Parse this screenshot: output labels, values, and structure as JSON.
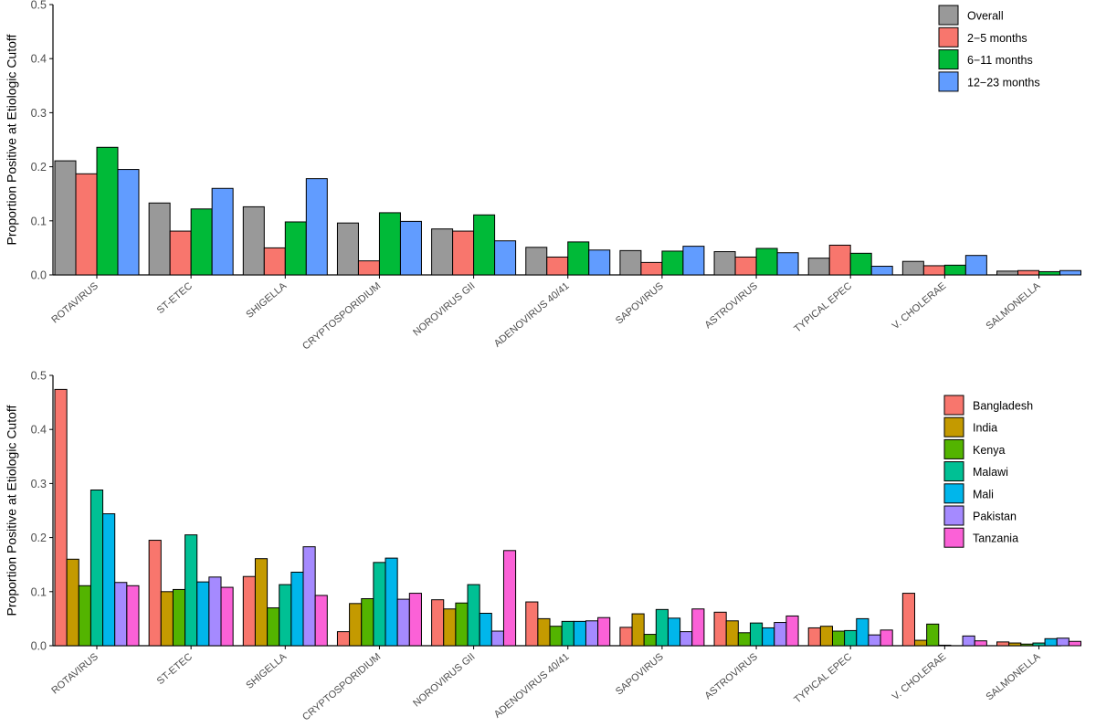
{
  "chart_data": [
    {
      "type": "bar",
      "title": "",
      "xlabel": "",
      "ylabel": "Proportion Positive at Etiologic Cutoff",
      "ylim": [
        0,
        0.5
      ],
      "yticks": [
        "0.0",
        "0.1",
        "0.2",
        "0.3",
        "0.4",
        "0.5"
      ],
      "grid": false,
      "legend_position": "top-right",
      "categories": [
        "ROTAVIRUS",
        "ST-ETEC",
        "SHIGELLA",
        "CRYPTOSPORIDIUM",
        "NOROVIRUS GII",
        "ADENOVIRUS 40/41",
        "SAPOVIRUS",
        "ASTROVIRUS",
        "TYPICAL EPEC",
        "V. CHOLERAE",
        "SALMONELLA"
      ],
      "series": [
        {
          "name": "Overall",
          "color": "#999999",
          "values": [
            0.211,
            0.133,
            0.126,
            0.096,
            0.085,
            0.051,
            0.045,
            0.043,
            0.031,
            0.025,
            0.007
          ]
        },
        {
          "name": "2−5 months",
          "color": "#F8766D",
          "values": [
            0.187,
            0.081,
            0.05,
            0.026,
            0.081,
            0.033,
            0.023,
            0.033,
            0.055,
            0.017,
            0.008
          ]
        },
        {
          "name": "6−11 months",
          "color": "#00BA38",
          "values": [
            0.236,
            0.122,
            0.098,
            0.115,
            0.111,
            0.061,
            0.044,
            0.049,
            0.04,
            0.018,
            0.006
          ]
        },
        {
          "name": "12−23 months",
          "color": "#619CFF",
          "values": [
            0.195,
            0.16,
            0.178,
            0.099,
            0.063,
            0.046,
            0.053,
            0.041,
            0.016,
            0.036,
            0.008
          ]
        }
      ]
    },
    {
      "type": "bar",
      "title": "",
      "xlabel": "",
      "ylabel": "Proportion Positive at Etiologic Cutoff",
      "ylim": [
        0,
        0.5
      ],
      "yticks": [
        "0.0",
        "0.1",
        "0.2",
        "0.3",
        "0.4",
        "0.5"
      ],
      "grid": false,
      "legend_position": "top-right",
      "categories": [
        "ROTAVIRUS",
        "ST-ETEC",
        "SHIGELLA",
        "CRYPTOSPORIDIUM",
        "NOROVIRUS GII",
        "ADENOVIRUS 40/41",
        "SAPOVIRUS",
        "ASTROVIRUS",
        "TYPICAL EPEC",
        "V. CHOLERAE",
        "SALMONELLA"
      ],
      "series": [
        {
          "name": "Bangladesh",
          "color": "#F8766D",
          "values": [
            0.474,
            0.195,
            0.128,
            0.026,
            0.085,
            0.081,
            0.034,
            0.062,
            0.033,
            0.097,
            0.007
          ]
        },
        {
          "name": "India",
          "color": "#C49A00",
          "values": [
            0.16,
            0.1,
            0.161,
            0.078,
            0.068,
            0.05,
            0.059,
            0.046,
            0.036,
            0.01,
            0.005
          ]
        },
        {
          "name": "Kenya",
          "color": "#53B400",
          "values": [
            0.111,
            0.104,
            0.07,
            0.087,
            0.079,
            0.036,
            0.021,
            0.024,
            0.027,
            0.04,
            0.003
          ]
        },
        {
          "name": "Malawi",
          "color": "#00C094",
          "values": [
            0.288,
            0.205,
            0.113,
            0.154,
            0.113,
            0.045,
            0.067,
            0.042,
            0.028,
            0.001,
            0.005
          ]
        },
        {
          "name": "Mali",
          "color": "#00B6EB",
          "values": [
            0.244,
            0.118,
            0.136,
            0.162,
            0.06,
            0.045,
            0.051,
            0.033,
            0.05,
            0.0,
            0.013
          ]
        },
        {
          "name": "Pakistan",
          "color": "#A58AFF",
          "values": [
            0.117,
            0.127,
            0.183,
            0.086,
            0.027,
            0.046,
            0.026,
            0.043,
            0.02,
            0.018,
            0.014
          ]
        },
        {
          "name": "Tanzania",
          "color": "#FB61D7",
          "values": [
            0.111,
            0.108,
            0.093,
            0.097,
            0.176,
            0.052,
            0.068,
            0.055,
            0.029,
            0.009,
            0.008
          ]
        }
      ]
    }
  ]
}
